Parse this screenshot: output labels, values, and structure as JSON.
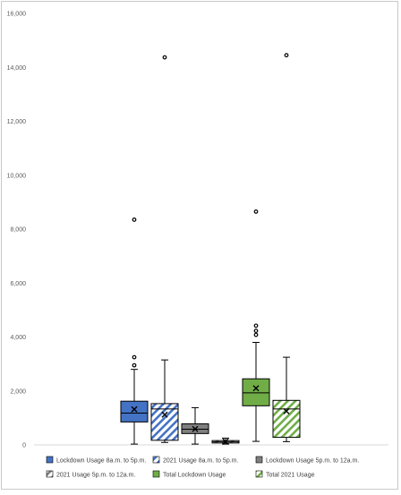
{
  "chart_data": {
    "type": "box",
    "title": "",
    "xlabel": "",
    "ylabel": "",
    "ylim": [
      0,
      16000
    ],
    "yticks": [
      "0",
      "2,000",
      "4,000",
      "6,000",
      "8,000",
      "10,000",
      "12,000",
      "14,000",
      "16,000"
    ],
    "ytick_values": [
      0,
      2000,
      4000,
      6000,
      8000,
      10000,
      12000,
      14000,
      16000
    ],
    "grid": false,
    "legend_position": "bottom",
    "series": [
      {
        "name": "Lockdown Usage 8a.m. to 5p.m.",
        "color": "#4472c4",
        "pattern": "solid",
        "min": 30,
        "q1": 850,
        "median": 1180,
        "mean": 1320,
        "q3": 1620,
        "max": 2800,
        "outliers": [
          2950,
          3250,
          8350
        ]
      },
      {
        "name": "2021 Usage 8a.m. to 5p.m.",
        "color": "#4472c4",
        "pattern": "diagonal",
        "min": 90,
        "q1": 170,
        "median": 1330,
        "mean": 1120,
        "q3": 1530,
        "max": 3150,
        "outliers": [
          14370
        ]
      },
      {
        "name": "Lockdown Usage 5p.m. to 12a.m.",
        "color": "#7f7f7f",
        "pattern": "solid",
        "min": 30,
        "q1": 420,
        "median": 580,
        "mean": 590,
        "q3": 780,
        "max": 1380,
        "outliers": []
      },
      {
        "name": "2021 Usage 5p.m. to 12a.m.",
        "color": "#7f7f7f",
        "pattern": "diagonal",
        "min": 30,
        "q1": 70,
        "median": 110,
        "mean": 120,
        "q3": 160,
        "max": 250,
        "outliers": []
      },
      {
        "name": "Total Lockdown Usage",
        "color": "#70ad47",
        "pattern": "solid",
        "min": 130,
        "q1": 1450,
        "median": 1930,
        "mean": 2100,
        "q3": 2450,
        "max": 3800,
        "outliers": [
          4080,
          4230,
          4420,
          8650
        ]
      },
      {
        "name": "Total 2021 Usage",
        "color": "#70ad47",
        "pattern": "diagonal",
        "min": 120,
        "q1": 280,
        "median": 1330,
        "mean": 1250,
        "q3": 1650,
        "max": 3250,
        "outliers": [
          14450
        ]
      }
    ]
  }
}
